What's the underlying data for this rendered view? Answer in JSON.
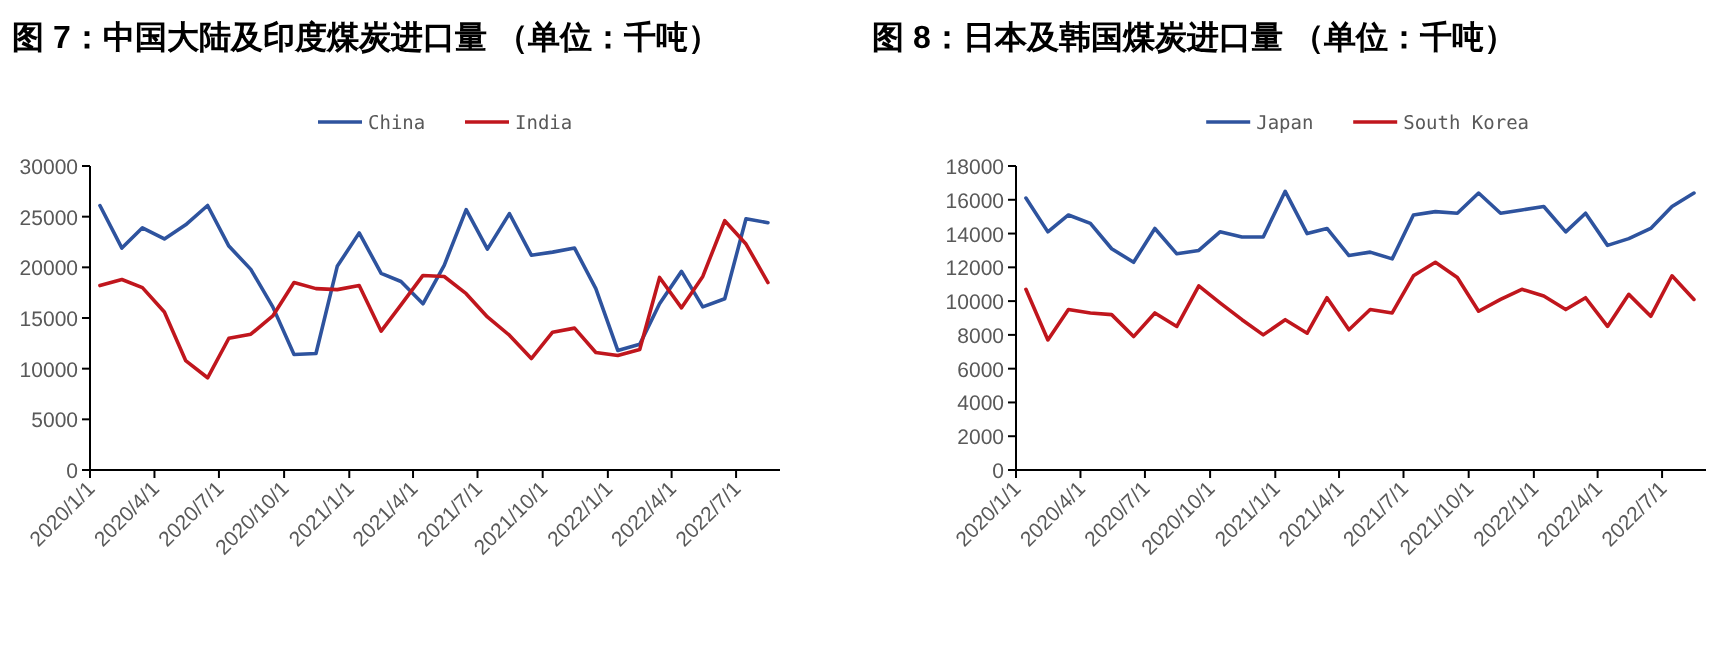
{
  "chart_data": [
    {
      "type": "line",
      "title": "图 7：中国大陆及印度煤炭进口量 （单位：千吨）",
      "legend": "top",
      "grid": false,
      "marker": "none",
      "line_style": "solid",
      "x": [
        "2020-01-15",
        "2020-02-15",
        "2020-03-15",
        "2020-04-15",
        "2020-05-15",
        "2020-06-15",
        "2020-07-15",
        "2020-08-15",
        "2020-09-15",
        "2020-10-15",
        "2020-11-15",
        "2020-12-15",
        "2021-01-15",
        "2021-02-15",
        "2021-03-15",
        "2021-04-15",
        "2021-05-15",
        "2021-06-15",
        "2021-07-15",
        "2021-08-15",
        "2021-09-15",
        "2021-10-15",
        "2021-11-15",
        "2021-12-15",
        "2022-01-15",
        "2022-02-15",
        "2022-03-15",
        "2022-04-15",
        "2022-05-15",
        "2022-06-15",
        "2022-07-15",
        "2022-08-15"
      ],
      "xlim": [
        "2020-01-01",
        "2022-09-01"
      ],
      "xticks": [
        {
          "value": "2020-01-01",
          "label": "2020/1/1"
        },
        {
          "value": "2020-04-01",
          "label": "2020/4/1"
        },
        {
          "value": "2020-07-01",
          "label": "2020/7/1"
        },
        {
          "value": "2020-10-01",
          "label": "2020/10/1"
        },
        {
          "value": "2021-01-01",
          "label": "2021/1/1"
        },
        {
          "value": "2021-04-01",
          "label": "2021/4/1"
        },
        {
          "value": "2021-07-01",
          "label": "2021/7/1"
        },
        {
          "value": "2021-10-01",
          "label": "2021/10/1"
        },
        {
          "value": "2022-01-01",
          "label": "2022/1/1"
        },
        {
          "value": "2022-04-01",
          "label": "2022/4/1"
        },
        {
          "value": "2022-07-01",
          "label": "2022/7/1"
        }
      ],
      "ylim": [
        0,
        30000
      ],
      "yticks": [
        0,
        5000,
        10000,
        15000,
        20000,
        25000,
        30000
      ],
      "series": [
        {
          "name": "China",
          "color": "#2e539e",
          "values": [
            26100,
            21900,
            23900,
            22800,
            24200,
            26100,
            22100,
            19800,
            16100,
            11400,
            11500,
            20100,
            23400,
            19400,
            18600,
            16400,
            20200,
            25700,
            21800,
            25300,
            21200,
            21500,
            21900,
            17900,
            11800,
            12400,
            16400,
            19600,
            16100,
            16900,
            24800,
            24400
          ]
        },
        {
          "name": "India",
          "color": "#c0161d",
          "values": [
            18200,
            18800,
            18000,
            15600,
            10800,
            9100,
            13000,
            13400,
            15200,
            18500,
            17900,
            17800,
            18200,
            13700,
            16300,
            19200,
            19100,
            17400,
            15100,
            13300,
            11000,
            13600,
            14000,
            11600,
            11300,
            11900,
            19000,
            16000,
            19100,
            24600,
            22300,
            18500
          ]
        }
      ]
    },
    {
      "type": "line",
      "title": "图 8：日本及韩国煤炭进口量 （单位：千吨）",
      "legend": "top",
      "grid": false,
      "marker": "none",
      "line_style": "solid",
      "x": [
        "2020-01-15",
        "2020-02-15",
        "2020-03-15",
        "2020-04-15",
        "2020-05-15",
        "2020-06-15",
        "2020-07-15",
        "2020-08-15",
        "2020-09-15",
        "2020-10-15",
        "2020-11-15",
        "2020-12-15",
        "2021-01-15",
        "2021-02-15",
        "2021-03-15",
        "2021-04-15",
        "2021-05-15",
        "2021-06-15",
        "2021-07-15",
        "2021-08-15",
        "2021-09-15",
        "2021-10-15",
        "2021-11-15",
        "2021-12-15",
        "2022-01-15",
        "2022-02-15",
        "2022-03-15",
        "2022-04-15",
        "2022-05-15",
        "2022-06-15",
        "2022-07-15",
        "2022-08-15"
      ],
      "xlim": [
        "2020-01-01",
        "2022-09-01"
      ],
      "xticks": [
        {
          "value": "2020-01-01",
          "label": "2020/1/1"
        },
        {
          "value": "2020-04-01",
          "label": "2020/4/1"
        },
        {
          "value": "2020-07-01",
          "label": "2020/7/1"
        },
        {
          "value": "2020-10-01",
          "label": "2020/10/1"
        },
        {
          "value": "2021-01-01",
          "label": "2021/1/1"
        },
        {
          "value": "2021-04-01",
          "label": "2021/4/1"
        },
        {
          "value": "2021-07-01",
          "label": "2021/7/1"
        },
        {
          "value": "2021-10-01",
          "label": "2021/10/1"
        },
        {
          "value": "2022-01-01",
          "label": "2022/1/1"
        },
        {
          "value": "2022-04-01",
          "label": "2022/4/1"
        },
        {
          "value": "2022-07-01",
          "label": "2022/7/1"
        }
      ],
      "ylim": [
        0,
        18000
      ],
      "yticks": [
        0,
        2000,
        4000,
        6000,
        8000,
        10000,
        12000,
        14000,
        16000,
        18000
      ],
      "series": [
        {
          "name": "Japan",
          "color": "#2e539e",
          "values": [
            16100,
            14100,
            15100,
            14600,
            13100,
            12300,
            14300,
            12800,
            13000,
            14100,
            13800,
            13800,
            16500,
            14000,
            14300,
            12700,
            12900,
            12500,
            15100,
            15300,
            15200,
            16400,
            15200,
            15400,
            15600,
            14100,
            15200,
            13300,
            13700,
            14300,
            15600,
            16400
          ]
        },
        {
          "name": "South Korea",
          "color": "#c0161d",
          "values": [
            10700,
            7700,
            9500,
            9300,
            9200,
            7900,
            9300,
            8500,
            10900,
            9900,
            8900,
            8000,
            8900,
            8100,
            10200,
            8300,
            9500,
            9300,
            11500,
            12300,
            11400,
            9400,
            10100,
            10700,
            10300,
            9500,
            10200,
            8500,
            10400,
            9100,
            11500,
            10100
          ]
        }
      ]
    }
  ]
}
